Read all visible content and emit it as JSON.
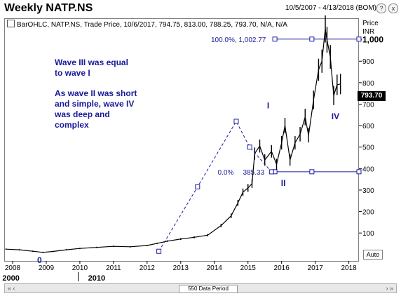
{
  "window": {
    "title": "Weekly NATP.NS",
    "date_range": "10/5/2007 - 4/13/2018 (BOM)",
    "controls": [
      "?",
      "x"
    ]
  },
  "legend": {
    "text": "BarOHLC, NATP.NS, Trade Price, 10/6/2017, 794.75, 813.00, 788.25, 793.70, N/A, N/A"
  },
  "y_axis": {
    "title_line1": "Price",
    "title_line2": "INR",
    "last_price": "793.70",
    "auto_button": "Auto"
  },
  "bottom_bar": {
    "period_label": "550 Data Period",
    "left_icon": "« ‹",
    "right_icon": "› »"
  },
  "annotations": {
    "wave3_text": [
      "Wave III was equal",
      "to wave I"
    ],
    "wave4_text": [
      "As wave II was short",
      "and simple, wave IV",
      "was deep and",
      "complex"
    ]
  },
  "chart_data": {
    "type": "ohlc",
    "title": "Weekly NATP.NS",
    "ylabel": "Price INR",
    "ylim": [
      -30,
      1100
    ],
    "xlim": [
      2007.75,
      2018.3
    ],
    "grid": false,
    "y_ticks": [
      100,
      200,
      300,
      400,
      500,
      600,
      700,
      800,
      900,
      1000
    ],
    "y_tick_labels": [
      "100",
      "200",
      "300",
      "400",
      "500",
      "600",
      "700",
      "800",
      "900",
      "1,000"
    ],
    "x_ticks": [
      2008,
      2009,
      2010,
      2011,
      2012,
      2013,
      2014,
      2015,
      2016,
      2017,
      2018
    ],
    "x_tick_labels": [
      "2008",
      "2009",
      "2010",
      "2011",
      "2012",
      "2013",
      "2014",
      "2015",
      "2016",
      "2017",
      "2018"
    ],
    "decade_labels": [
      {
        "x": 2007.95,
        "label": "2000"
      },
      {
        "x": 2010.5,
        "label": "2010"
      }
    ],
    "price_series": [
      [
        2007.8,
        25
      ],
      [
        2008.2,
        22
      ],
      [
        2008.6,
        15
      ],
      [
        2008.9,
        10
      ],
      [
        2009.2,
        14
      ],
      [
        2009.6,
        22
      ],
      [
        2010.0,
        28
      ],
      [
        2010.5,
        33
      ],
      [
        2011.0,
        38
      ],
      [
        2011.5,
        36
      ],
      [
        2012.0,
        42
      ],
      [
        2012.3,
        52
      ],
      [
        2012.6,
        62
      ],
      [
        2013.0,
        72
      ],
      [
        2013.4,
        80
      ],
      [
        2013.8,
        90
      ],
      [
        2014.2,
        135
      ],
      [
        2014.5,
        180
      ],
      [
        2014.7,
        240
      ],
      [
        2014.85,
        290
      ],
      [
        2015.0,
        310
      ],
      [
        2015.12,
        330
      ],
      [
        2015.2,
        470
      ],
      [
        2015.35,
        505
      ],
      [
        2015.5,
        440
      ],
      [
        2015.7,
        480
      ],
      [
        2015.85,
        420
      ],
      [
        2016.0,
        520
      ],
      [
        2016.1,
        600
      ],
      [
        2016.25,
        440
      ],
      [
        2016.4,
        520
      ],
      [
        2016.55,
        560
      ],
      [
        2016.7,
        640
      ],
      [
        2016.8,
        555
      ],
      [
        2016.95,
        720
      ],
      [
        2017.1,
        860
      ],
      [
        2017.2,
        900
      ],
      [
        2017.3,
        1050
      ],
      [
        2017.35,
        1000
      ],
      [
        2017.45,
        920
      ],
      [
        2017.55,
        740
      ],
      [
        2017.65,
        790
      ],
      [
        2017.75,
        793.7
      ]
    ],
    "wave_projection_line": {
      "points": [
        [
          2012.35,
          15
        ],
        [
          2013.5,
          315
        ],
        [
          2014.65,
          620
        ],
        [
          2015.05,
          500
        ],
        [
          2015.7,
          385
        ]
      ],
      "style": "dashed"
    },
    "horizontal_levels": [
      {
        "y": 1002.77,
        "x_start": 2015.8,
        "x_end": 2018.3,
        "label": "100.0%, 1,002.77",
        "label_x": 2013.9,
        "marker_x": [
          2015.8,
          2016.9,
          2018.3
        ]
      },
      {
        "y": 385.33,
        "x_start": 2015.8,
        "x_end": 2018.3,
        "label": "0.0%",
        "label_x": 2014.1,
        "label2": "385.33",
        "label2_x": 2014.85,
        "marker_x": [
          2015.8,
          2016.9,
          2018.3
        ]
      }
    ],
    "wave_labels": [
      {
        "label": "0",
        "x": 2008.8,
        "y": -40
      },
      {
        "label": "I",
        "x": 2015.6,
        "y": 680
      },
      {
        "label": "II",
        "x": 2016.05,
        "y": 320
      },
      {
        "label": "IV",
        "x": 2017.6,
        "y": 630
      }
    ],
    "colors": {
      "price": "#000000",
      "projection": "#1a1a9a",
      "levels": "#1a1a9a",
      "annotation": "#1a1a9a"
    }
  }
}
